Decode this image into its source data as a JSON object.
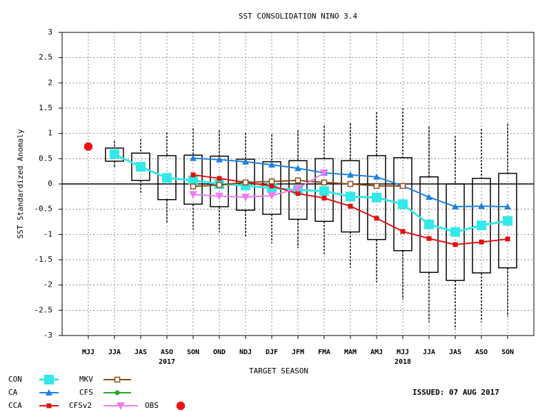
{
  "chart_data": {
    "type": "spread-line",
    "title": "SST CONSOLIDATION NINO 3.4",
    "y_label": "SST Standardized Anomaly",
    "x_label": "TARGET SEASON",
    "issued": "ISSUED: 07 AUG 2017",
    "categories": [
      "MJJ",
      "JJA",
      "JAS",
      "ASO",
      "SON",
      "OND",
      "NDJ",
      "DJF",
      "JFM",
      "FMA",
      "MAM",
      "AMJ",
      "MJJ",
      "JJA",
      "JAS",
      "ASO",
      "SON"
    ],
    "category_years": [
      null,
      null,
      null,
      "2017",
      null,
      null,
      null,
      null,
      null,
      null,
      null,
      null,
      "2018",
      null,
      null,
      null,
      null
    ],
    "ylim": [
      -3,
      3
    ],
    "yticks": [
      3,
      2.5,
      2,
      1.5,
      1,
      0.5,
      0,
      -0.5,
      -1,
      -1.5,
      -2,
      -2.5,
      -3
    ],
    "grid": true,
    "spread": {
      "max": [
        null,
        0.85,
        0.89,
        1.02,
        1.1,
        1.06,
        1.01,
        0.98,
        1.06,
        1.15,
        1.2,
        1.42,
        1.5,
        1.13,
        0.95,
        1.09,
        1.19
      ],
      "upper": [
        null,
        0.71,
        0.61,
        0.56,
        0.57,
        0.55,
        0.49,
        0.44,
        0.46,
        0.5,
        0.46,
        0.56,
        0.52,
        0.14,
        0.0,
        0.11,
        0.21
      ],
      "lower": [
        null,
        0.45,
        0.07,
        -0.31,
        -0.4,
        -0.45,
        -0.52,
        -0.6,
        -0.7,
        -0.74,
        -0.95,
        -1.1,
        -1.32,
        -1.75,
        -1.91,
        -1.76,
        -1.66
      ],
      "min": [
        null,
        0.33,
        -0.2,
        -0.78,
        -0.91,
        -0.95,
        -1.04,
        -1.17,
        -1.27,
        -1.39,
        -1.66,
        -1.95,
        -2.29,
        -2.73,
        -2.88,
        -2.73,
        -2.63
      ]
    },
    "series": [
      {
        "name": "CON",
        "color": "#33e8e8",
        "marker": "square",
        "line": true,
        "values": [
          null,
          0.59,
          0.34,
          0.12,
          0.07,
          0.0,
          -0.03,
          -0.08,
          -0.12,
          -0.14,
          -0.25,
          -0.27,
          -0.4,
          -0.8,
          -0.95,
          -0.82,
          -0.73
        ]
      },
      {
        "name": "CA",
        "color": "#1e80e0",
        "marker": "triangle",
        "line": true,
        "values": [
          null,
          null,
          null,
          null,
          0.51,
          0.48,
          0.44,
          0.38,
          0.31,
          0.22,
          0.18,
          0.14,
          -0.04,
          -0.26,
          -0.45,
          -0.44,
          -0.45
        ]
      },
      {
        "name": "CCA",
        "color": "#e01010",
        "marker": "square-small",
        "line": true,
        "values": [
          null,
          null,
          null,
          null,
          0.18,
          0.11,
          0.03,
          -0.04,
          -0.19,
          -0.28,
          -0.44,
          -0.68,
          -0.94,
          -1.08,
          -1.2,
          -1.15,
          -1.09
        ]
      },
      {
        "name": "MKV",
        "color": "#8b4a14",
        "marker": "square-open",
        "line": true,
        "values": [
          null,
          null,
          null,
          null,
          -0.05,
          -0.02,
          0.03,
          0.05,
          0.07,
          0.03,
          0.0,
          -0.04,
          -0.04,
          null,
          null,
          null,
          null
        ]
      },
      {
        "name": "CFS",
        "color": "#22aa22",
        "marker": "circle",
        "line": true,
        "values": [
          null,
          null,
          null,
          null,
          null,
          null,
          null,
          null,
          null,
          null,
          null,
          null,
          null,
          null,
          null,
          null,
          null
        ]
      },
      {
        "name": "CFSv2",
        "color": "#f07cf0",
        "marker": "triangle-down",
        "line": true,
        "values": [
          null,
          null,
          null,
          null,
          -0.21,
          -0.24,
          -0.26,
          -0.23,
          -0.09,
          0.22,
          null,
          null,
          null,
          null,
          null,
          null,
          null
        ]
      },
      {
        "name": "OBS",
        "color": "#ee1111",
        "marker": "octagon",
        "line": false,
        "values": [
          0.74,
          null,
          null,
          null,
          null,
          null,
          null,
          null,
          null,
          null,
          null,
          null,
          null,
          null,
          null,
          null,
          null
        ]
      }
    ]
  }
}
